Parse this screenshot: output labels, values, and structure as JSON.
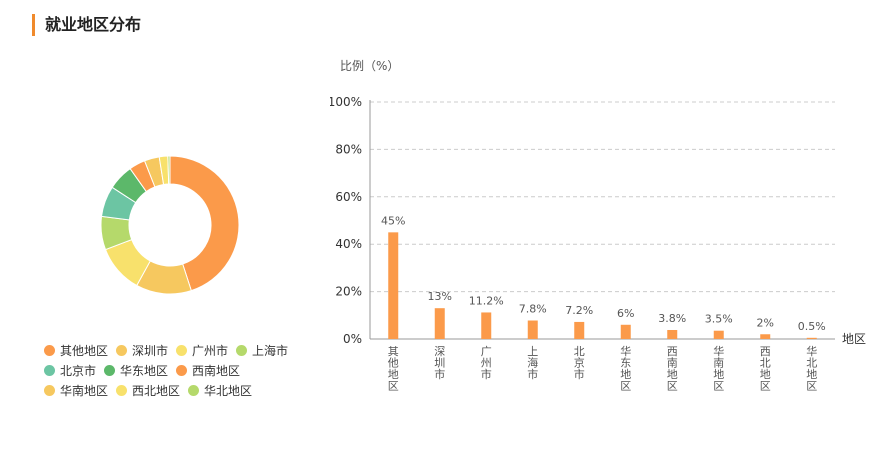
{
  "header": {
    "title": "就业地区分布"
  },
  "chart_data": [
    {
      "type": "pie",
      "variant": "donut",
      "categories": [
        "其他地区",
        "深圳市",
        "广州市",
        "上海市",
        "北京市",
        "华东地区",
        "西南地区",
        "华南地区",
        "西北地区",
        "华北地区"
      ],
      "values": [
        45,
        13,
        11.2,
        7.8,
        7.2,
        6,
        3.8,
        3.5,
        2,
        0.5
      ],
      "colors": [
        "#fb9a4a",
        "#f6c85f",
        "#f8e16c",
        "#b5d96b",
        "#6cc5a3",
        "#5cb86a",
        "#fb9a4a",
        "#f6c85f",
        "#f8e16c",
        "#b5d96b"
      ],
      "legend_position": "bottom-left"
    },
    {
      "type": "bar",
      "categories": [
        "其他地区",
        "深圳市",
        "广州市",
        "上海市",
        "北京市",
        "华东地区",
        "西南地区",
        "华南地区",
        "西北地区",
        "华北地区"
      ],
      "values": [
        45,
        13,
        11.2,
        7.8,
        7.2,
        6,
        3.8,
        3.5,
        2,
        0.5
      ],
      "data_labels": [
        "45%",
        "13%",
        "11.2%",
        "7.8%",
        "7.2%",
        "6%",
        "3.8%",
        "3.5%",
        "2%",
        "0.5%"
      ],
      "ylabel": "比例（%）",
      "xlabel": "地区",
      "ylim": [
        0,
        100
      ],
      "yticks": [
        0,
        20,
        40,
        60,
        80,
        100
      ],
      "ytick_labels": [
        "0%",
        "20%",
        "40%",
        "60%",
        "80%",
        "100%"
      ],
      "grid": true,
      "bar_color": "#fb9a4a"
    }
  ]
}
